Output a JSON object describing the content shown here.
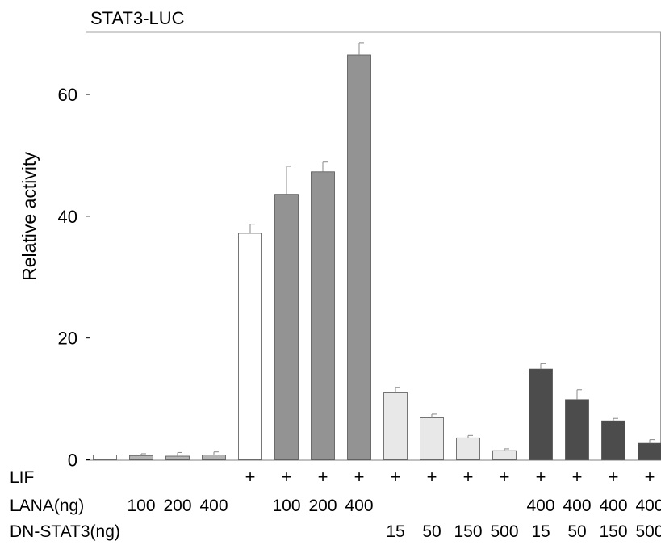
{
  "chart_data": {
    "type": "bar",
    "title": "STAT3-LUC",
    "xlabel": "",
    "ylabel": "Relative activity",
    "ylim": [
      0,
      70
    ],
    "yticks": [
      0,
      20,
      40,
      60
    ],
    "grid": false,
    "legend": "none",
    "values": [
      0.8,
      0.7,
      0.6,
      0.8,
      37.2,
      43.6,
      47.3,
      66.5,
      11.0,
      6.9,
      3.6,
      1.5,
      14.9,
      9.9,
      6.4,
      2.7
    ],
    "errors": [
      0.0,
      0.3,
      0.6,
      0.5,
      1.5,
      4.6,
      1.6,
      2.0,
      0.9,
      0.6,
      0.4,
      0.3,
      0.9,
      1.6,
      0.4,
      0.6
    ],
    "bar_colors": [
      "#ffffff",
      "#b4b4b4",
      "#b4b4b4",
      "#b4b4b4",
      "#ffffff",
      "#939393",
      "#939393",
      "#939393",
      "#e8e8e8",
      "#e8e8e8",
      "#e8e8e8",
      "#e8e8e8",
      "#4c4c4c",
      "#4c4c4c",
      "#4c4c4c",
      "#4c4c4c"
    ],
    "conditions": [
      {
        "name": "LIF",
        "values": [
          "",
          "",
          "",
          "",
          "+",
          "+",
          "+",
          "+",
          "+",
          "+",
          "+",
          "+",
          "+",
          "+",
          "+",
          "+"
        ]
      },
      {
        "name": "LANA(ng)",
        "values": [
          "",
          "100",
          "200",
          "400",
          "",
          "100",
          "200",
          "400",
          "",
          "",
          "",
          "",
          "400",
          "400",
          "400",
          "400"
        ]
      },
      {
        "name": "DN-STAT3(ng)",
        "values": [
          "",
          "",
          "",
          "",
          "",
          "",
          "",
          "",
          "15",
          "50",
          "150",
          "500",
          "15",
          "50",
          "150",
          "500"
        ]
      }
    ]
  }
}
